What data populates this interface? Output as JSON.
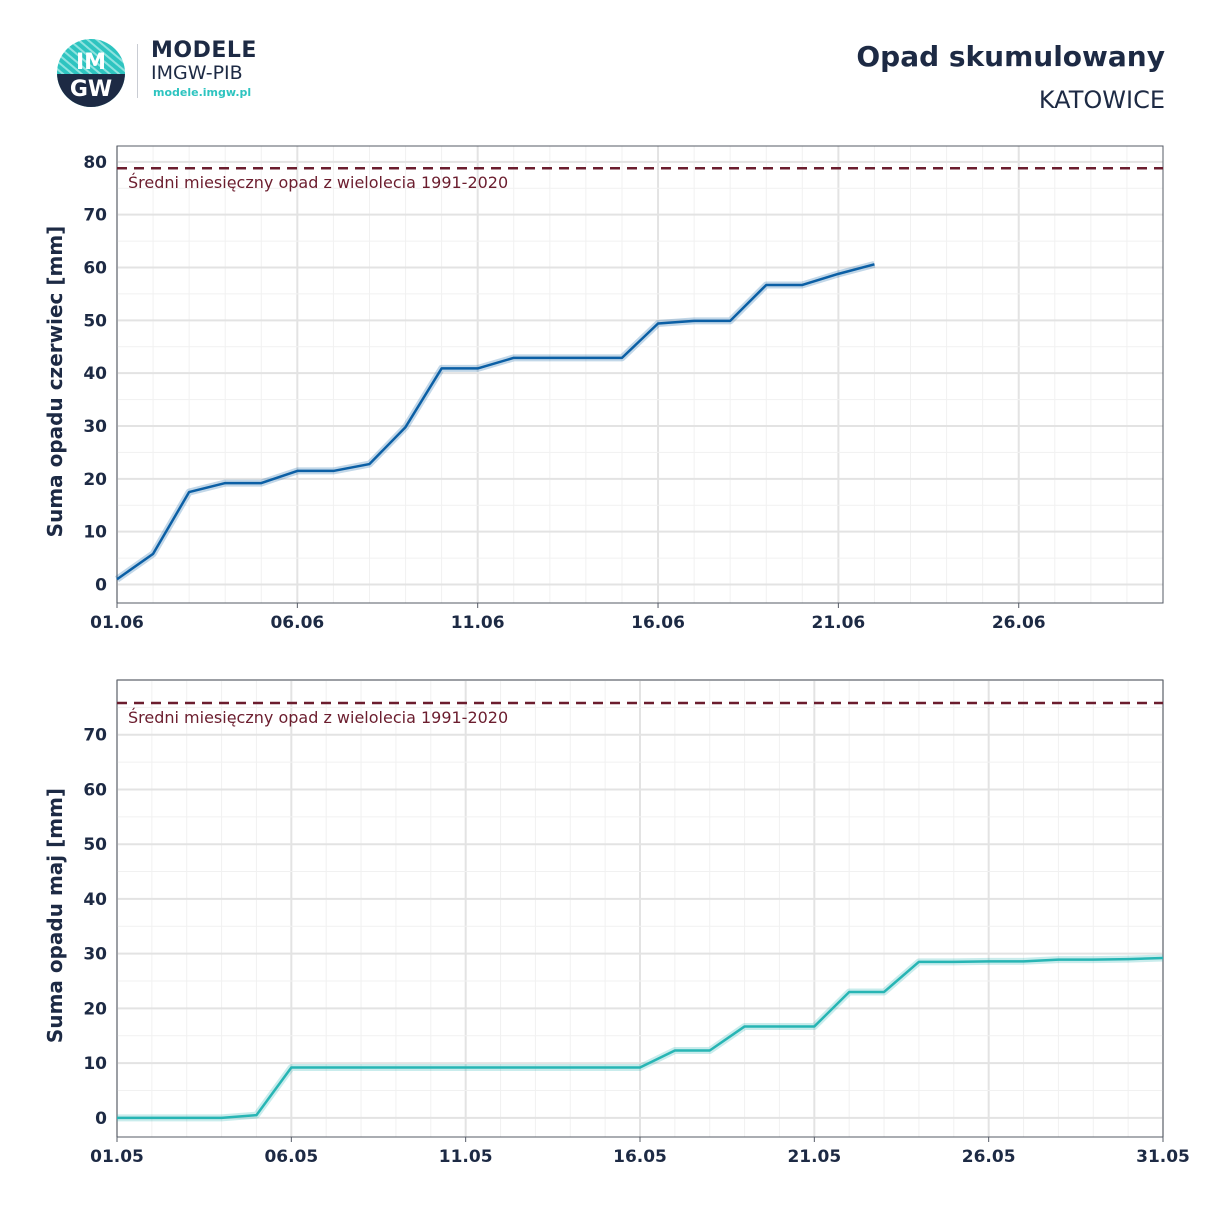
{
  "brand": {
    "logo_text_top": "IM",
    "logo_text_bottom": "GW",
    "name": "MODELE",
    "org": "IMGW-PIB",
    "url": "modele.imgw.pl"
  },
  "title": "Opad skumulowany",
  "subtitle": "KATOWICE",
  "colors": {
    "june_line": "#0b5fa5",
    "may_line": "#27b5b4",
    "reference": "#6b1d2e",
    "text": "#1d2a44",
    "logo": "#2ec4c0"
  },
  "chart_data": [
    {
      "type": "line",
      "ylabel": "Suma opadu czerwiec  [mm]",
      "xlim": [
        1,
        30
      ],
      "ylim": [
        -3.5,
        83
      ],
      "yticks": [
        0,
        10,
        20,
        30,
        40,
        50,
        60,
        70,
        80
      ],
      "xticks": [
        1,
        6,
        11,
        16,
        21,
        26
      ],
      "xtick_labels": [
        "01.06",
        "06.06",
        "11.06",
        "16.06",
        "21.06",
        "26.06"
      ],
      "x": [
        1,
        2,
        3,
        4,
        5,
        6,
        7,
        8,
        9,
        10,
        11,
        12,
        13,
        14,
        15,
        16,
        17,
        18,
        19,
        20,
        21,
        22
      ],
      "series": [
        {
          "values": [
            1.0,
            5.8,
            17.5,
            19.2,
            19.2,
            21.5,
            21.5,
            22.8,
            29.8,
            40.9,
            40.9,
            42.9,
            42.9,
            42.9,
            42.9,
            49.4,
            49.9,
            49.9,
            56.7,
            56.7,
            58.8,
            60.6
          ]
        }
      ],
      "reference_line": {
        "value": 78.8,
        "label": "Średni miesięczny opad z wielolecia 1991-2020",
        "style": "dashed"
      },
      "grid": true
    },
    {
      "type": "line",
      "ylabel": "Suma opadu maj  [mm]",
      "xlim": [
        1,
        31
      ],
      "ylim": [
        -3.5,
        80
      ],
      "yticks": [
        0,
        10,
        20,
        30,
        40,
        50,
        60,
        70
      ],
      "xticks": [
        1,
        6,
        11,
        16,
        21,
        26,
        31
      ],
      "xtick_labels": [
        "01.05",
        "06.05",
        "11.05",
        "16.05",
        "21.05",
        "26.05",
        "31.05"
      ],
      "x": [
        1,
        2,
        3,
        4,
        5,
        6,
        7,
        8,
        9,
        10,
        11,
        12,
        13,
        14,
        15,
        16,
        17,
        18,
        19,
        20,
        21,
        22,
        23,
        24,
        25,
        26,
        27,
        28,
        29,
        30,
        31
      ],
      "series": [
        {
          "values": [
            0,
            0,
            0,
            0,
            0.5,
            9.2,
            9.2,
            9.2,
            9.2,
            9.2,
            9.2,
            9.2,
            9.2,
            9.2,
            9.2,
            9.2,
            12.3,
            12.3,
            16.7,
            16.7,
            16.7,
            23.0,
            23.0,
            28.5,
            28.5,
            28.6,
            28.6,
            28.9,
            28.9,
            29.0,
            29.2
          ]
        }
      ],
      "reference_line": {
        "value": 75.8,
        "label": "Średni miesięczny opad z wielolecia 1991-2020",
        "style": "dashed"
      },
      "grid": true
    }
  ]
}
